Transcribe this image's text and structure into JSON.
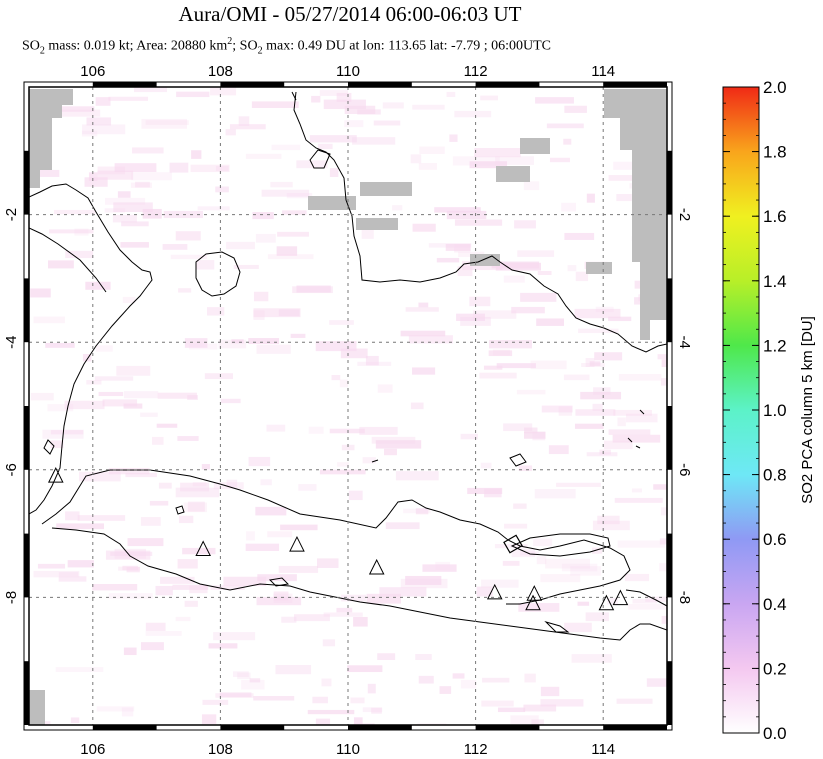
{
  "title": "Aura/OMI - 05/27/2014 06:00-06:03 UT",
  "subtitle": {
    "so2_label": "SO",
    "so2_sub": "2",
    "mass_text": " mass: 0.019 kt; Area: 20880 km",
    "area_sup": "2",
    "mid_text": "; SO",
    "mid_sub": "2",
    "max_text": " max: 0.49 DU at lon: 113.65 lat: -7.79 ; 06:00UTC"
  },
  "map": {
    "lon_range": [
      105,
      115
    ],
    "lat_range": [
      -10,
      0
    ],
    "lon_ticks": [
      "106",
      "108",
      "110",
      "112",
      "114"
    ],
    "lat_ticks": [
      "-2",
      "-4",
      "-6",
      "-8"
    ],
    "grid": "dashed",
    "volcanoes": [
      {
        "lon": 105.42,
        "lat": -6.1
      },
      {
        "lon": 107.73,
        "lat": -7.25
      },
      {
        "lon": 109.2,
        "lat": -7.18
      },
      {
        "lon": 110.45,
        "lat": -7.54
      },
      {
        "lon": 112.3,
        "lat": -7.93
      },
      {
        "lon": 112.92,
        "lat": -7.95
      },
      {
        "lon": 112.9,
        "lat": -8.1
      },
      {
        "lon": 114.05,
        "lat": -8.1
      },
      {
        "lon": 114.27,
        "lat": -8.02
      }
    ]
  },
  "colorbar": {
    "label": "SO2 PCA column 5 km [DU]",
    "ticks": [
      "0.0",
      "0.2",
      "0.4",
      "0.6",
      "0.8",
      "1.0",
      "1.2",
      "1.4",
      "1.6",
      "1.8",
      "2.0"
    ],
    "range": [
      0,
      2
    ],
    "colors": [
      "#ffffff",
      "#f4c8f0",
      "#c9a6f2",
      "#8f99f4",
      "#6ee8f6",
      "#5cf2c8",
      "#4fe84a",
      "#b8ef28",
      "#f0f020",
      "#f9a51c",
      "#f02a16"
    ]
  }
}
